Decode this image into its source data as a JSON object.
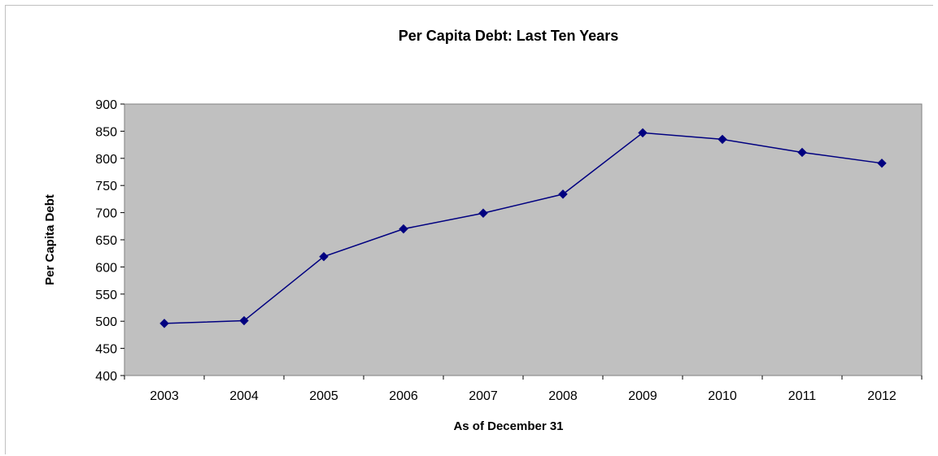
{
  "chart_data": {
    "type": "line",
    "title": "Per Capita Debt: Last Ten Years",
    "xlabel": "As of December 31",
    "ylabel": "Per Capita Debt",
    "categories": [
      "2003",
      "2004",
      "2005",
      "2006",
      "2007",
      "2008",
      "2009",
      "2010",
      "2011",
      "2012"
    ],
    "series": [
      {
        "values": [
          496,
          501,
          619,
          670,
          699,
          734,
          847,
          835,
          811,
          791
        ]
      }
    ],
    "ylim": [
      400,
      900
    ],
    "yticks": [
      400,
      450,
      500,
      550,
      600,
      650,
      700,
      750,
      800,
      850,
      900
    ],
    "grid": false,
    "legend": "none",
    "colors": {
      "plot_background": "#c0c0c0",
      "line": "#000080",
      "marker": "#000080"
    }
  }
}
